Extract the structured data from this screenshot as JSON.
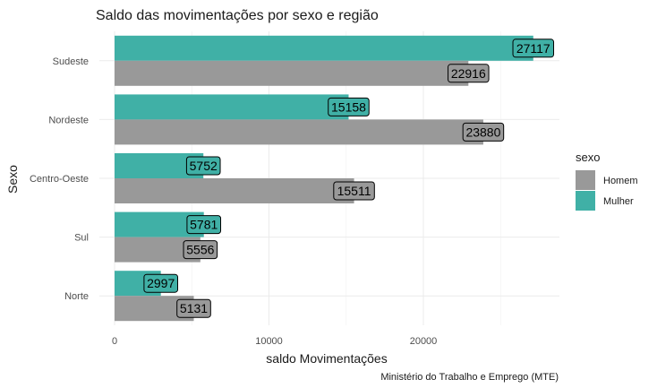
{
  "chart_data": {
    "type": "bar",
    "orientation": "horizontal",
    "title": "Saldo das movimentações por sexo e região",
    "xlabel": "saldo Movimentações",
    "ylabel": "Sexo",
    "caption": "Ministério do Trabalho e Emprego (MTE)",
    "categories": [
      "Norte",
      "Sul",
      "Centro-Oeste",
      "Nordeste",
      "Sudeste"
    ],
    "xlim": [
      0,
      28500
    ],
    "xticks": [
      0,
      10000,
      20000
    ],
    "xtick_labels": [
      "0",
      "10000",
      "20000"
    ],
    "legend": {
      "title": "sexo",
      "position": "right"
    },
    "series": [
      {
        "name": "Homem",
        "color": "#999999",
        "values": [
          5131,
          5556,
          15511,
          23880,
          22916
        ]
      },
      {
        "name": "Mulher",
        "color": "#40B0A6",
        "values": [
          2997,
          5781,
          5752,
          15158,
          27117
        ]
      }
    ],
    "grid": true
  }
}
